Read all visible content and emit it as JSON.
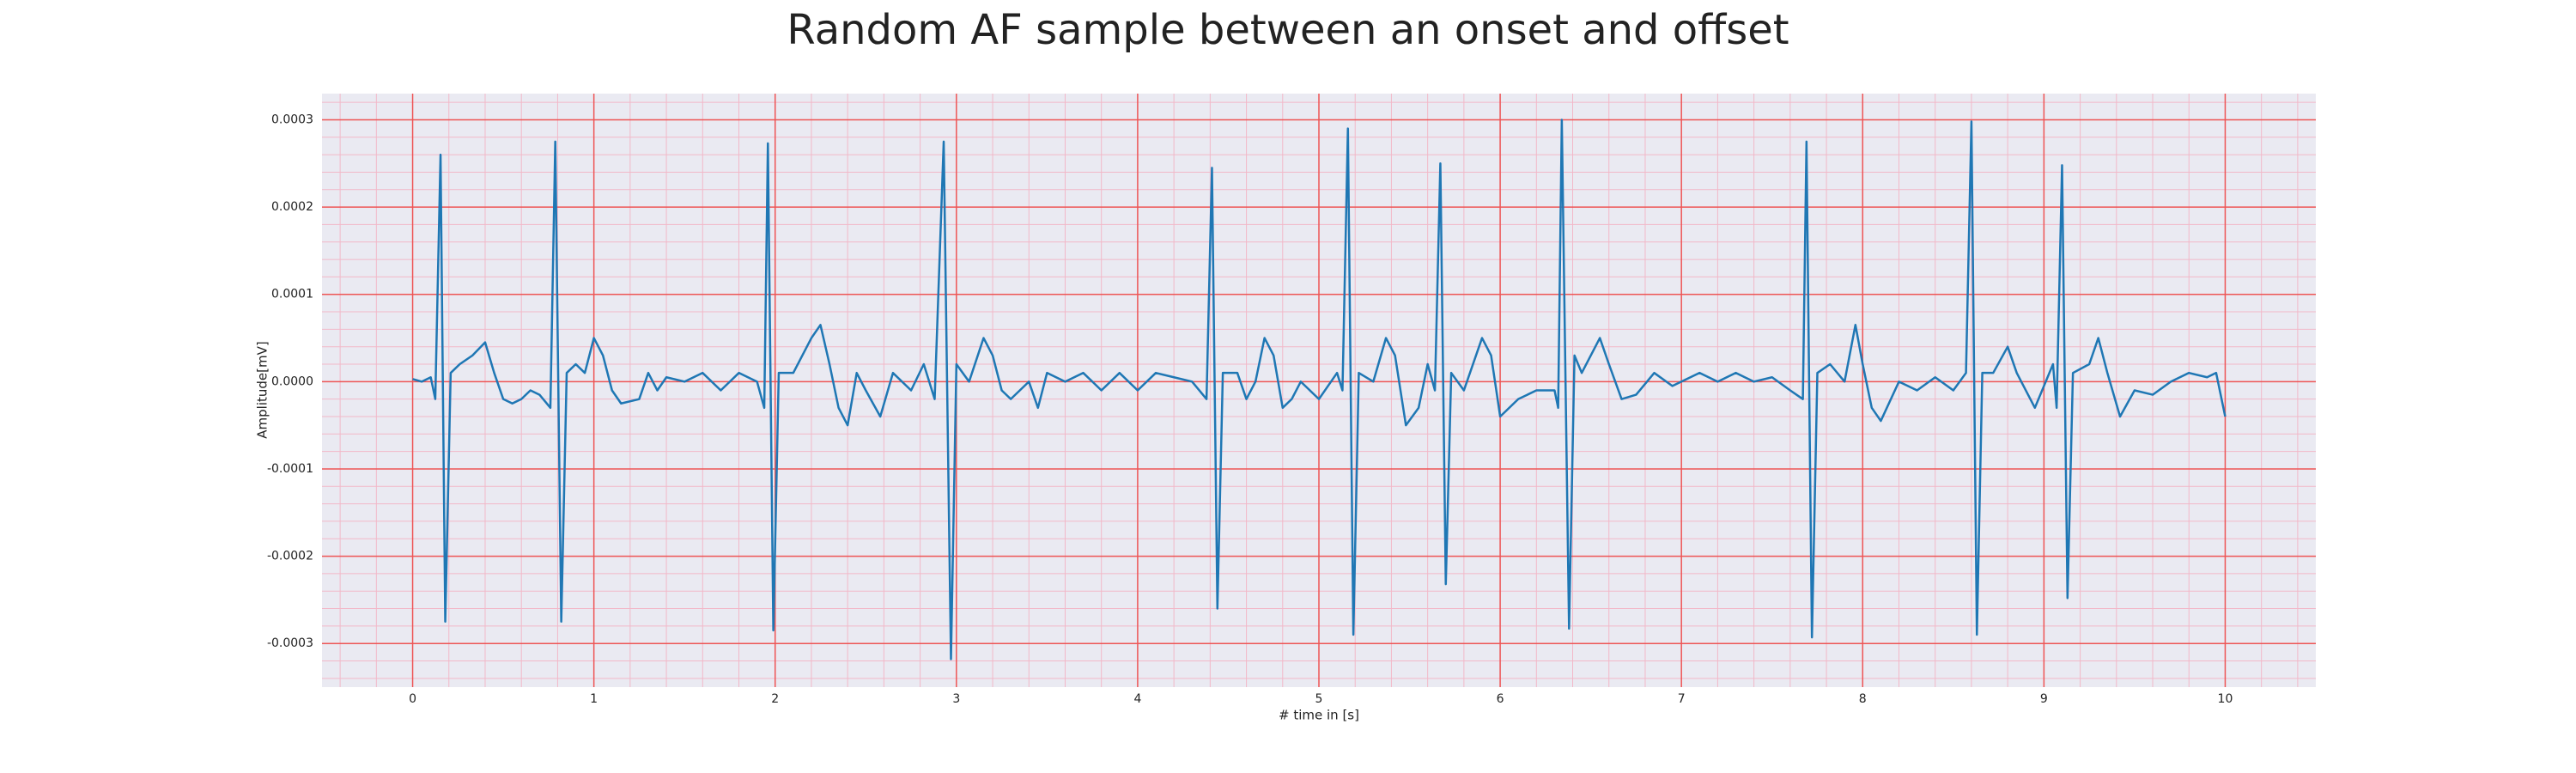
{
  "chart_data": {
    "type": "line",
    "title": "Random AF sample between an onset and offset",
    "x_label": "# time in [s]",
    "y_label": "Amplitude[mV]",
    "color": "#1f77b4",
    "grid": true,
    "x": [
      0,
      0.05,
      0.1,
      0.125,
      0.154,
      0.18,
      0.21,
      0.26,
      0.33,
      0.4,
      0.45,
      0.5,
      0.55,
      0.6,
      0.65,
      0.7,
      0.76,
      0.787,
      0.82,
      0.85,
      0.9,
      0.95,
      1.0,
      1.05,
      1.1,
      1.15,
      1.25,
      1.3,
      1.35,
      1.4,
      1.5,
      1.6,
      1.7,
      1.8,
      1.9,
      1.94,
      1.96,
      1.99,
      2.02,
      2.1,
      2.2,
      2.25,
      2.3,
      2.35,
      2.4,
      2.45,
      2.5,
      2.58,
      2.65,
      2.75,
      2.82,
      2.88,
      2.93,
      2.97,
      3.0,
      3.07,
      3.15,
      3.2,
      3.25,
      3.3,
      3.4,
      3.45,
      3.5,
      3.6,
      3.7,
      3.8,
      3.9,
      4.0,
      4.1,
      4.2,
      4.3,
      4.38,
      4.41,
      4.44,
      4.47,
      4.55,
      4.6,
      4.65,
      4.7,
      4.75,
      4.8,
      4.85,
      4.9,
      5.0,
      5.1,
      5.13,
      5.16,
      5.19,
      5.22,
      5.3,
      5.37,
      5.42,
      5.48,
      5.55,
      5.6,
      5.64,
      5.67,
      5.7,
      5.73,
      5.8,
      5.9,
      5.95,
      6.0,
      6.1,
      6.2,
      6.3,
      6.32,
      6.34,
      6.38,
      6.41,
      6.45,
      6.55,
      6.6,
      6.67,
      6.75,
      6.85,
      6.95,
      7.1,
      7.2,
      7.3,
      7.4,
      7.5,
      7.6,
      7.67,
      7.69,
      7.72,
      7.75,
      7.82,
      7.9,
      7.96,
      8.0,
      8.05,
      8.1,
      8.2,
      8.3,
      8.4,
      8.5,
      8.57,
      8.6,
      8.63,
      8.66,
      8.72,
      8.8,
      8.85,
      8.95,
      9.05,
      9.07,
      9.1,
      9.13,
      9.16,
      9.25,
      9.3,
      9.35,
      9.42,
      9.5,
      9.6,
      9.7,
      9.8,
      9.9,
      9.95,
      10.0
    ],
    "values": [
      3e-06,
      0.0,
      5e-06,
      -2e-05,
      0.00026,
      -0.000275,
      1e-05,
      2e-05,
      3e-05,
      4.5e-05,
      1e-05,
      -2e-05,
      -2.5e-05,
      -2e-05,
      -1e-05,
      -1.5e-05,
      -3e-05,
      0.000275,
      -0.000275,
      1e-05,
      2e-05,
      1e-05,
      5e-05,
      3e-05,
      -1e-05,
      -2.5e-05,
      -2e-05,
      1e-05,
      -1e-05,
      5e-06,
      0.0,
      1e-05,
      -1e-05,
      1e-05,
      0.0,
      -3e-05,
      0.000273,
      -0.000285,
      1e-05,
      1e-05,
      5e-05,
      6.5e-05,
      2e-05,
      -3e-05,
      -5e-05,
      1e-05,
      -1e-05,
      -4e-05,
      1e-05,
      -1e-05,
      2e-05,
      -2e-05,
      0.000275,
      -0.000318,
      2e-05,
      0.0,
      5e-05,
      3e-05,
      -1e-05,
      -2e-05,
      0.0,
      -3e-05,
      1e-05,
      0.0,
      1e-05,
      -1e-05,
      1e-05,
      -1e-05,
      1e-05,
      5e-06,
      0.0,
      -2e-05,
      0.000245,
      -0.00026,
      1e-05,
      1e-05,
      -2e-05,
      0.0,
      5e-05,
      3e-05,
      -3e-05,
      -2e-05,
      0.0,
      -2e-05,
      1e-05,
      -1e-05,
      0.00029,
      -0.00029,
      1e-05,
      0.0,
      5e-05,
      3e-05,
      -5e-05,
      -3e-05,
      2e-05,
      -1e-05,
      0.00025,
      -0.000232,
      1e-05,
      -1e-05,
      5e-05,
      3e-05,
      -4e-05,
      -2e-05,
      -1e-05,
      -1e-05,
      -3e-05,
      0.0003,
      -0.000283,
      3e-05,
      1e-05,
      5e-05,
      2e-05,
      -2e-05,
      -1.5e-05,
      1e-05,
      -5e-06,
      1e-05,
      0.0,
      1e-05,
      0.0,
      5e-06,
      -1e-05,
      -2e-05,
      0.000275,
      -0.000293,
      1e-05,
      2e-05,
      0.0,
      6.5e-05,
      2e-05,
      -3e-05,
      -4.5e-05,
      0.0,
      -1e-05,
      5e-06,
      -1e-05,
      1e-05,
      0.000298,
      -0.00029,
      1e-05,
      1e-05,
      4e-05,
      1e-05,
      -3e-05,
      2e-05,
      -3e-05,
      0.000248,
      -0.000248,
      1e-05,
      2e-05,
      5e-05,
      1e-05,
      -4e-05,
      -1e-05,
      -1.5e-05,
      0.0,
      1e-05,
      5e-06,
      1e-05,
      -4e-05
    ],
    "xlim": [
      -0.5,
      10.5
    ],
    "xticks": [
      0,
      1,
      2,
      3,
      4,
      5,
      6,
      7,
      8,
      9,
      10
    ],
    "ylim": [
      -0.00035,
      0.00033
    ],
    "yticks": [
      -0.0003,
      -0.0002,
      -0.0001,
      {
        "value": 0,
        "label": "0.0000"
      },
      0.0001,
      0.0002,
      0.0003
    ]
  }
}
